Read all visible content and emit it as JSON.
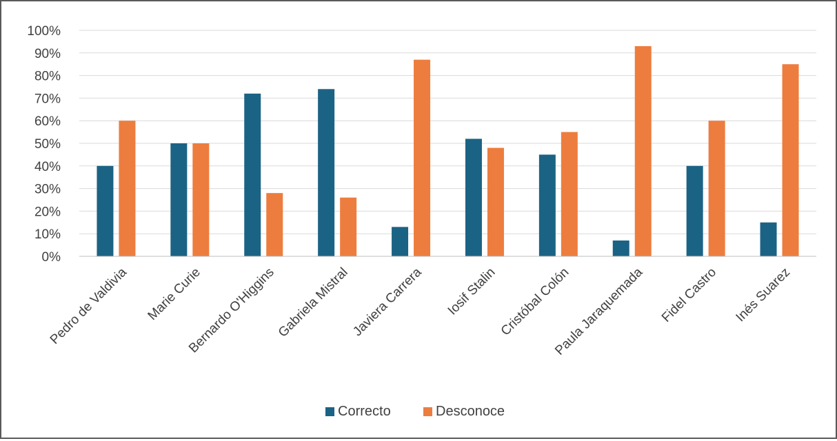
{
  "chart_data": {
    "type": "bar",
    "title": "",
    "xlabel": "",
    "ylabel": "",
    "categories": [
      "Pedro de Valdivia",
      "Marie Curie",
      "Bernardo O'Higgins",
      "Gabriela Mistral",
      "Javiera Carrera",
      "Iosif Stalin",
      "Cristóbal Colón",
      "Paula Jaraquemada",
      "Fidel Castro",
      "Inés Suarez"
    ],
    "series": [
      {
        "name": "Correcto",
        "color": "#1b6385",
        "values": [
          40,
          50,
          72,
          74,
          13,
          52,
          45,
          7,
          40,
          15
        ]
      },
      {
        "name": "Desconoce",
        "color": "#ed7d3e",
        "values": [
          60,
          50,
          28,
          26,
          87,
          48,
          55,
          93,
          60,
          85
        ]
      }
    ],
    "yticks": [
      "0%",
      "10%",
      "20%",
      "30%",
      "40%",
      "50%",
      "60%",
      "70%",
      "80%",
      "90%",
      "100%"
    ],
    "ylim": [
      0,
      100
    ],
    "grid": true,
    "legend": "bottom"
  }
}
